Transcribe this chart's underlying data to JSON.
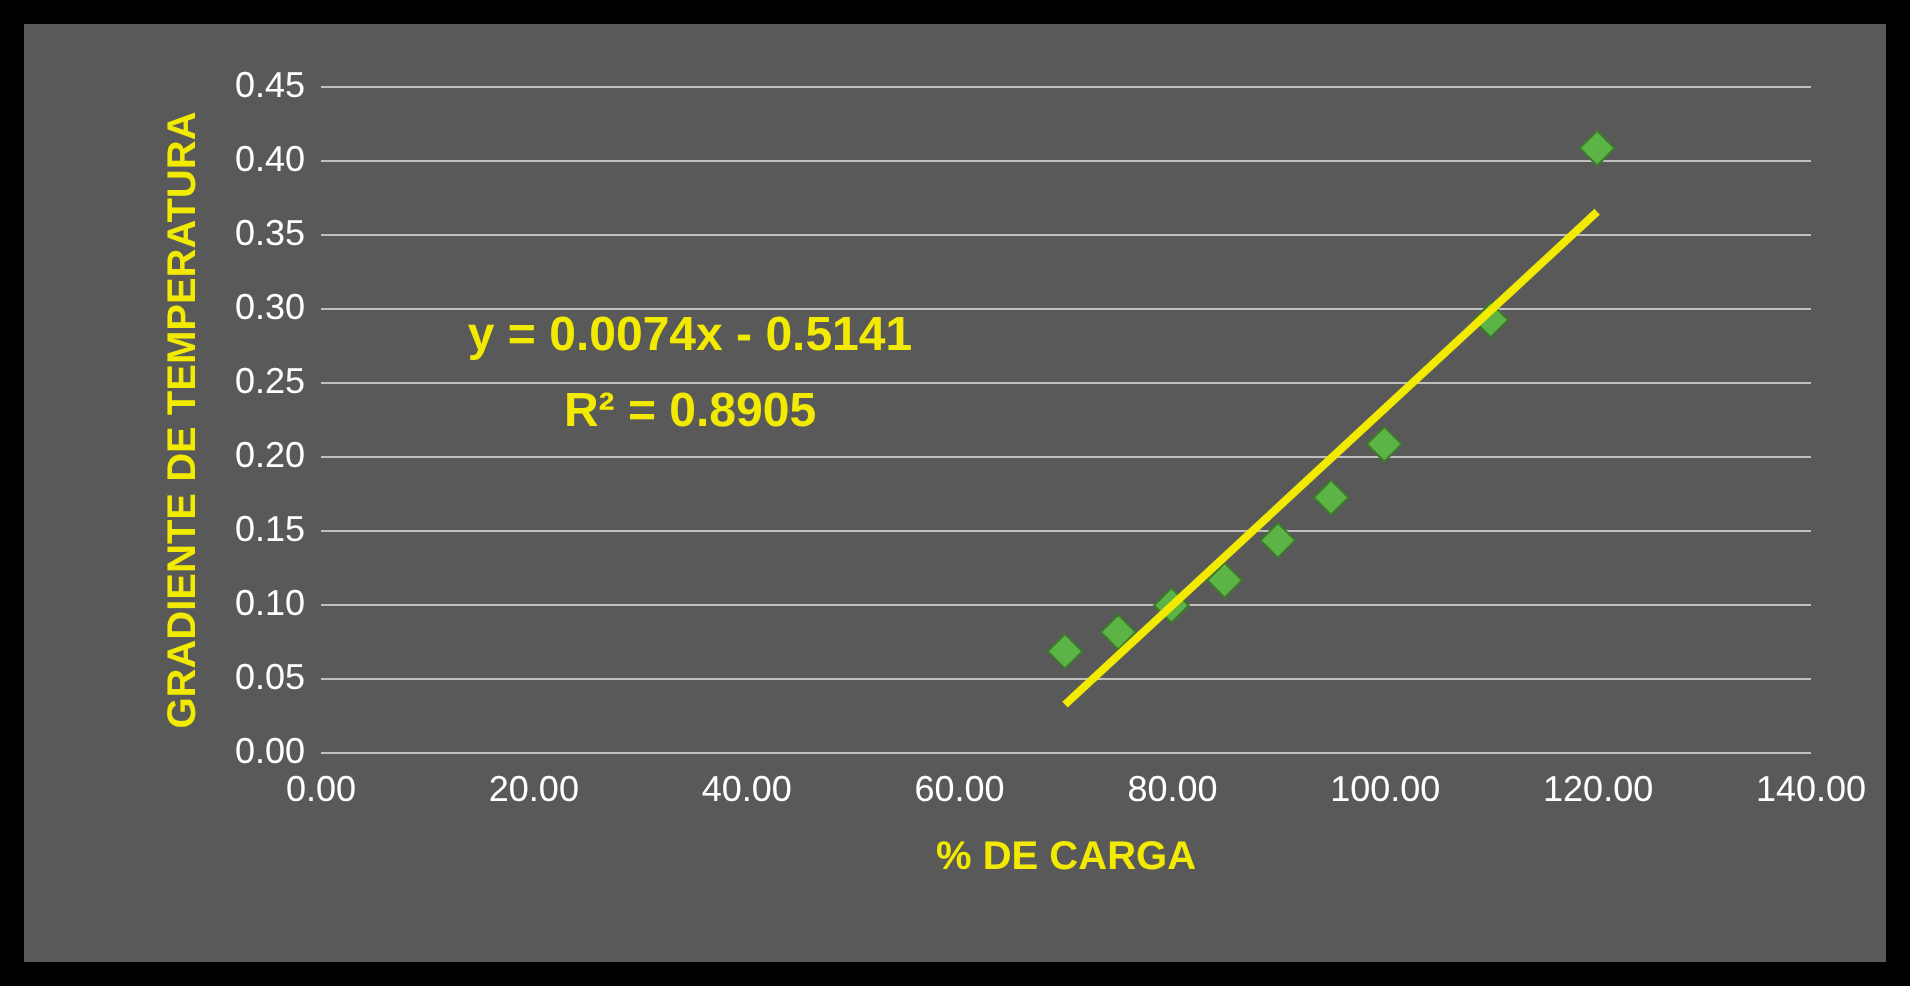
{
  "chart_data": {
    "type": "scatter",
    "xlabel": "% DE CARGA",
    "ylabel": "GRADIENTE DE TEMPERATURA",
    "annotations": [
      "y = 0.0074x - 0.5141",
      "R² = 0.8905"
    ],
    "x": [
      70,
      75,
      80,
      85,
      90,
      95,
      100,
      110,
      120
    ],
    "series": [
      {
        "color": "#5cb346",
        "values": [
          0.068,
          0.081,
          0.099,
          0.116,
          0.143,
          0.172,
          0.208,
          0.292,
          0.408
        ]
      },
      {
        "type": "line",
        "marker": "none",
        "color": "#f2ea00",
        "x": [
          70,
          120
        ],
        "values": [
          0.032,
          0.365
        ]
      }
    ],
    "xlim": [
      0,
      140
    ],
    "ylim": [
      0,
      0.45
    ],
    "xticks": [
      {
        "value": 0,
        "label": "0.00"
      },
      {
        "value": 20,
        "label": "20.00"
      },
      {
        "value": 40,
        "label": "40.00"
      },
      {
        "value": 60,
        "label": "60.00"
      },
      {
        "value": 80,
        "label": "80.00"
      },
      {
        "value": 100,
        "label": "100.00"
      },
      {
        "value": 120,
        "label": "120.00"
      },
      {
        "value": 140,
        "label": "140.00"
      }
    ],
    "yticks": [
      {
        "value": 0,
        "label": "0.00"
      },
      {
        "value": 0.05,
        "label": "0.05"
      },
      {
        "value": 0.1,
        "label": "0.10"
      },
      {
        "value": 0.15,
        "label": "0.15"
      },
      {
        "value": 0.2,
        "label": "0.20"
      },
      {
        "value": 0.25,
        "label": "0.25"
      },
      {
        "value": 0.3,
        "label": "0.30"
      },
      {
        "value": 0.35,
        "label": "0.35"
      },
      {
        "value": 0.4,
        "label": "0.40"
      },
      {
        "value": 0.45,
        "label": "0.45"
      }
    ],
    "grid": "y",
    "marker": "diamond"
  }
}
